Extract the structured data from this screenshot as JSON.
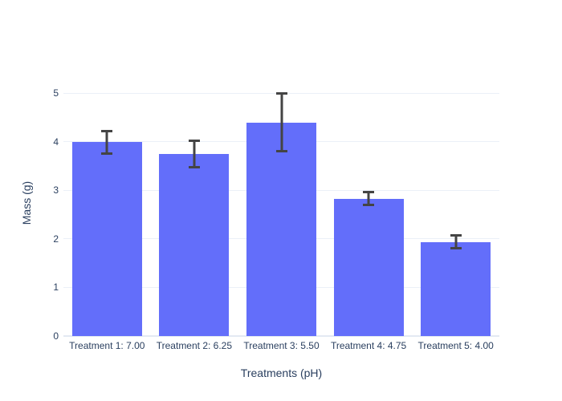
{
  "chart_data": {
    "type": "bar",
    "title": "",
    "categories": [
      "Treatment 1: 7.00",
      "Treatment 2: 6.25",
      "Treatment 3: 5.50",
      "Treatment 4: 4.75",
      "Treatment 5: 4.00"
    ],
    "values": [
      3.99,
      3.75,
      4.4,
      2.83,
      1.94
    ],
    "error_y": [
      0.26,
      0.3,
      0.62,
      0.16,
      0.15
    ],
    "xlabel": "Treatments (pH)",
    "ylabel": "Mass (g)",
    "ylim": [
      0,
      5.5
    ],
    "yticks": [
      0,
      1,
      2,
      3,
      4,
      5
    ],
    "grid": true,
    "legend_position": "none",
    "colors": {
      "bar": "#636efa",
      "error": "#444444",
      "grid": "#ebf0f8",
      "zeroline": "#e3e9f2",
      "text": "#2a3f5f",
      "background": "#ffffff"
    }
  }
}
